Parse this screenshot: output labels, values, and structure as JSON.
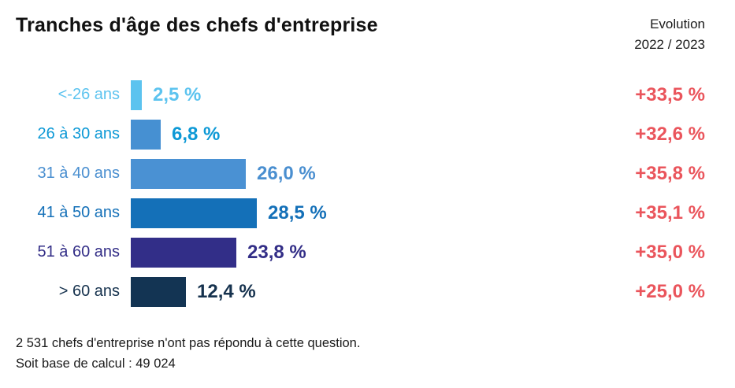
{
  "title": "Tranches d'âge des chefs d'entreprise",
  "evolution_header": {
    "line1": "Evolution",
    "line2": "2022 / 2023"
  },
  "footer": {
    "line1": "2 531 chefs d'entreprise n'ont pas répondu à cette question.",
    "line2": "Soit base de calcul : 49 024"
  },
  "colors": {
    "background": "#FFFFFF",
    "title_text": "#111111",
    "header_text": "#1A1A1A",
    "footer_text": "#1A1A1A",
    "evolution_value": "#EA555C"
  },
  "chart_data": {
    "type": "bar",
    "orientation": "horizontal",
    "title": "Tranches d'âge des chefs d'entreprise",
    "categories": [
      "<-26 ans",
      "26 à 30 ans",
      "31 à 40 ans",
      "41 à 50 ans",
      "51 à 60 ans",
      "> 60 ans"
    ],
    "series": [
      {
        "name": "Répartition des chefs d'entreprise (%)",
        "values": [
          2.5,
          6.8,
          26.0,
          28.5,
          23.8,
          12.4
        ],
        "labels": [
          "2,5 %",
          "6,8 %",
          "26,0 %",
          "28,5 %",
          "23,8 %",
          "12,4 %"
        ]
      },
      {
        "name": "Evolution 2022 / 2023 (%)",
        "values": [
          33.5,
          32.6,
          35.8,
          35.1,
          35.0,
          25.0
        ],
        "labels": [
          "+33,5 %",
          "+32,6 %",
          "+35,8 %",
          "+35,1 %",
          "+35,0 %",
          "+25,0 %"
        ]
      }
    ],
    "bar_colors": [
      "#5CC3EF",
      "#4690D2",
      "#4A91D3",
      "#1470B8",
      "#322E88",
      "#133453"
    ],
    "text_colors": [
      "#5CC3EF",
      "#0D99D6",
      "#4A8FD0",
      "#1470B8",
      "#332E87",
      "#16324E"
    ],
    "xlim": [
      0,
      30
    ],
    "grid": false,
    "legend": "none",
    "value_label_position": "right-of-bar"
  }
}
